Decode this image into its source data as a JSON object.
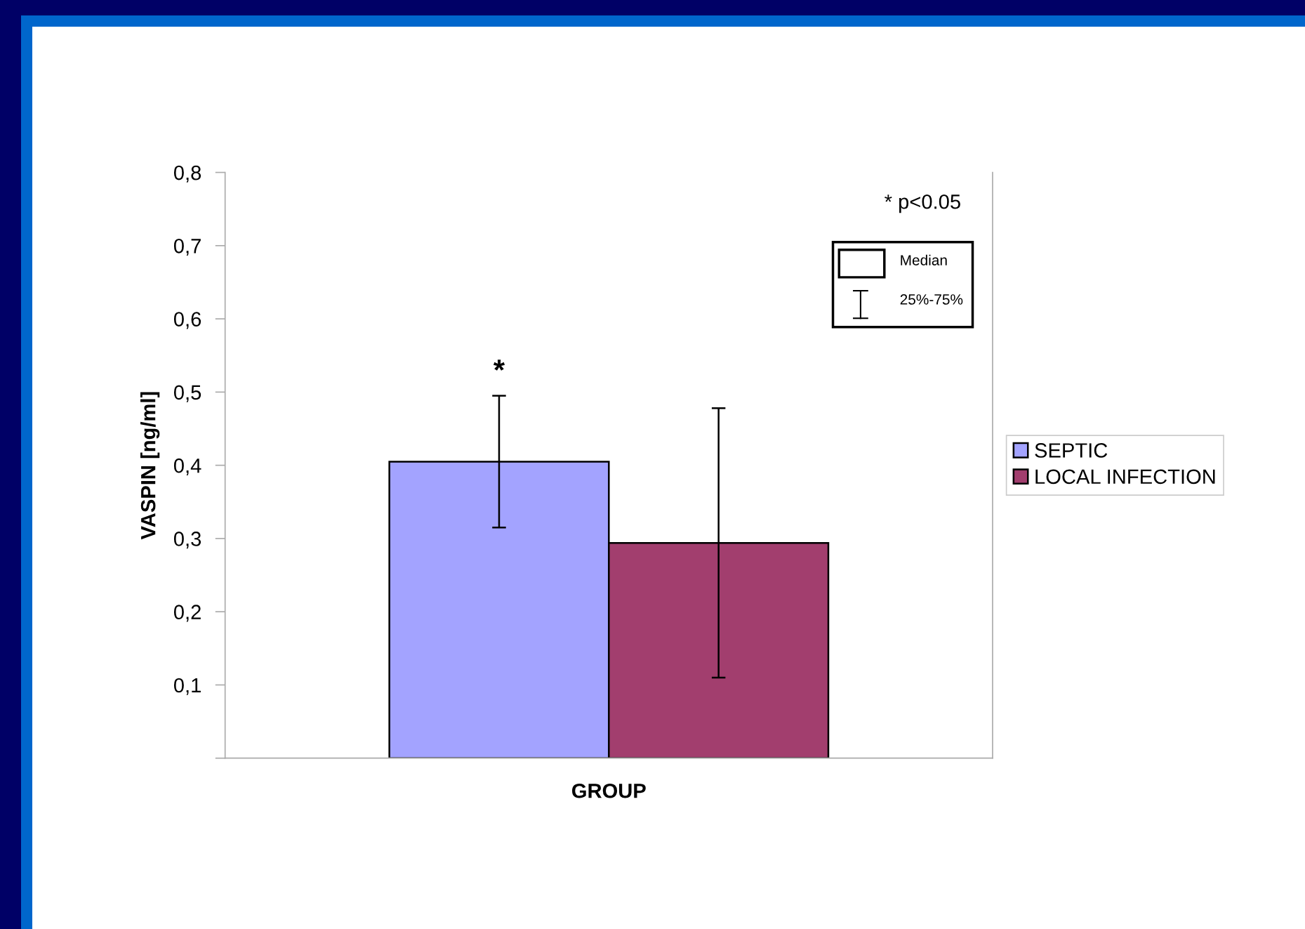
{
  "chart_data": {
    "type": "bar",
    "xlabel": "GROUP",
    "ylabel": "VASPIN [ng/ml]",
    "categories": [
      null
    ],
    "series": [
      {
        "name": "SEPTIC",
        "color": "#a3a3ff",
        "values": [
          0.405
        ],
        "errors": [
          [
            0.315,
            0.495
          ]
        ]
      },
      {
        "name": "LOCAL INFECTION",
        "color": "#a23e6e",
        "values": [
          0.294
        ],
        "errors": [
          [
            0.11,
            0.478
          ]
        ]
      }
    ],
    "ylim": [
      0,
      0.8
    ],
    "yticks": [
      {
        "value": 0,
        "label": null
      },
      {
        "value": 0.1,
        "label": "0,1"
      },
      {
        "value": 0.2,
        "label": "0,2"
      },
      {
        "value": 0.3,
        "label": "0,3"
      },
      {
        "value": 0.4,
        "label": "0,4"
      },
      {
        "value": 0.5,
        "label": "0,5"
      },
      {
        "value": 0.6,
        "label": "0,6"
      },
      {
        "value": 0.7,
        "label": "0,7"
      },
      {
        "value": 0.8,
        "label": "0,8"
      }
    ],
    "annotations": [
      "* p<0.05",
      "Median",
      "25%-75%",
      "*"
    ],
    "legend": "right",
    "grid": false
  }
}
